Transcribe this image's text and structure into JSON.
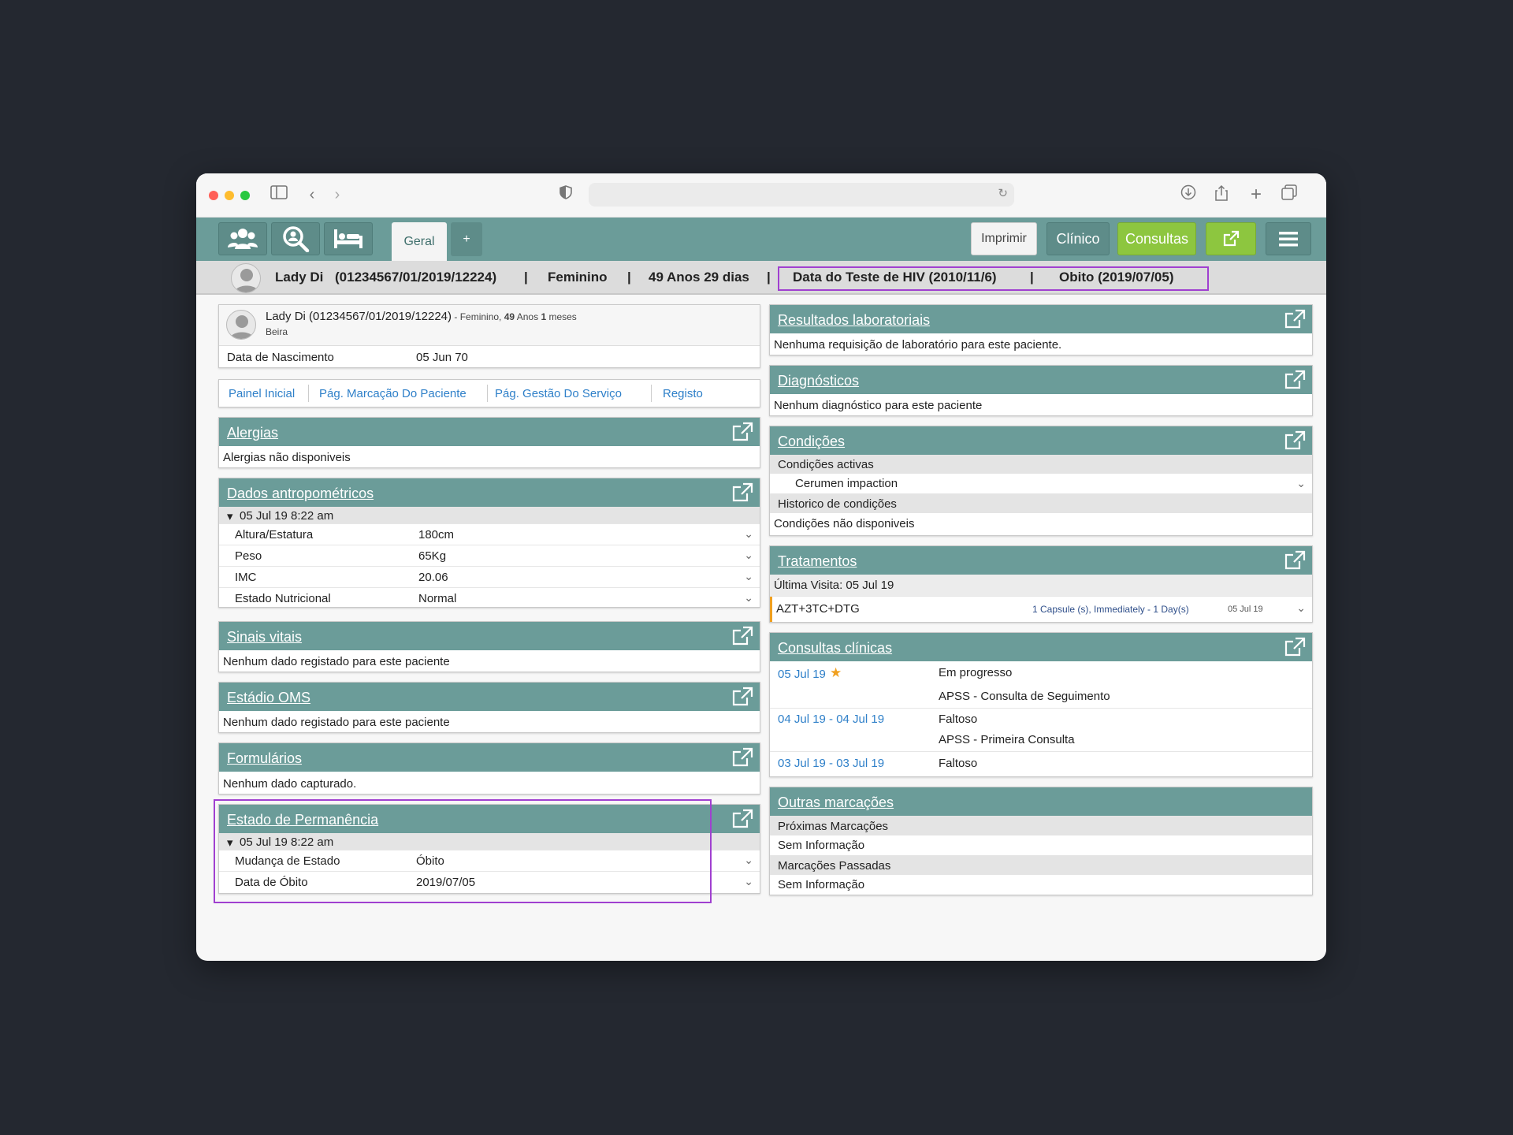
{
  "app": {
    "nav_icons": [
      "users-icon",
      "search-patient-icon",
      "bed-icon"
    ],
    "tabs": [
      {
        "label": "Geral"
      },
      {
        "label": "+"
      }
    ],
    "buttons": {
      "imprimir": "Imprimir",
      "clinico": "Clínico",
      "consultas": "Consultas"
    }
  },
  "patient_band": {
    "name": "Lady Di",
    "id": "(01234567/01/2019/12224)",
    "sep": "|",
    "gender": "Feminino",
    "age": "49 Anos 29 dias",
    "hiv_test": "Data do Teste de HIV (2010/11/6)",
    "death": "Obito (2019/07/05)"
  },
  "patient_info": {
    "name_id": "Lady Di (01234567/01/2019/12224)",
    "details_prefix": " - Feminino, ",
    "age_years": "49",
    "age_years_unit": " Anos ",
    "age_months": "1",
    "age_months_unit": " meses",
    "location": "Beira",
    "dob_label": "Data de Nascimento",
    "dob_value": "05 Jun 70"
  },
  "links": [
    "Painel Inicial",
    "Pág. Marcação Do Paciente",
    "Pág. Gestão Do Serviço",
    "Registo"
  ],
  "left": {
    "alergias": {
      "title": "Alergias",
      "text": "Alergias não disponiveis"
    },
    "antropo": {
      "title": "Dados antropométricos",
      "date": "05 Jul 19 8:22 am",
      "rows": [
        {
          "label": "Altura/Estatura",
          "value": "180cm"
        },
        {
          "label": "Peso",
          "value": "65Kg"
        },
        {
          "label": "IMC",
          "value": "20.06"
        },
        {
          "label": "Estado Nutricional",
          "value": "Normal"
        }
      ]
    },
    "sinais": {
      "title": "Sinais vitais",
      "text": "Nenhum dado registado para este paciente"
    },
    "oms": {
      "title": "Estádio OMS",
      "text": "Nenhum dado registado para este paciente"
    },
    "formularios": {
      "title": "Formulários",
      "text": "Nenhum dado capturado."
    },
    "permanencia": {
      "title": "Estado de Permanência",
      "date": "05 Jul 19 8:22 am",
      "rows": [
        {
          "label": "Mudança de Estado",
          "value": "Óbito"
        },
        {
          "label": "Data de Óbito",
          "value": "2019/07/05"
        }
      ]
    }
  },
  "right": {
    "lab": {
      "title": "Resultados laboratoriais",
      "text": "Nenhuma requisição de laboratório para este paciente."
    },
    "diag": {
      "title": "Diagnósticos",
      "text": "Nenhum diagnóstico para este paciente"
    },
    "cond": {
      "title": "Condições",
      "active_label": "Condições activas",
      "active_item": "Cerumen impaction",
      "history_label": "Historico de condições",
      "history_text": "Condições não disponiveis"
    },
    "trat": {
      "title": "Tratamentos",
      "last_visit": "Última Visita: 05 Jul 19",
      "drug": "AZT+3TC+DTG",
      "dose": "1 Capsule (s), Immediately - 1 Day(s)",
      "date": "05 Jul 19"
    },
    "consultas": {
      "title": "Consultas clínicas",
      "rows": [
        {
          "date": "05 Jul 19",
          "status": "Em progresso",
          "type": "APSS - Consulta de Seguimento"
        },
        {
          "date": "04 Jul 19 - 04 Jul 19",
          "status": "Faltoso",
          "type": "APSS - Primeira Consulta"
        },
        {
          "date": "03 Jul 19 - 03 Jul 19",
          "status": "Faltoso"
        }
      ]
    },
    "outras": {
      "title": "Outras marcações",
      "next_label": "Próximas Marcações",
      "next_text": "Sem Informação",
      "past_label": "Marcações Passadas",
      "past_text": "Sem Informação"
    }
  },
  "colors": {
    "header": "#6b9c99",
    "accent_green": "#8dc63f",
    "highlight": "#a040d0",
    "link": "#2f80c9"
  }
}
